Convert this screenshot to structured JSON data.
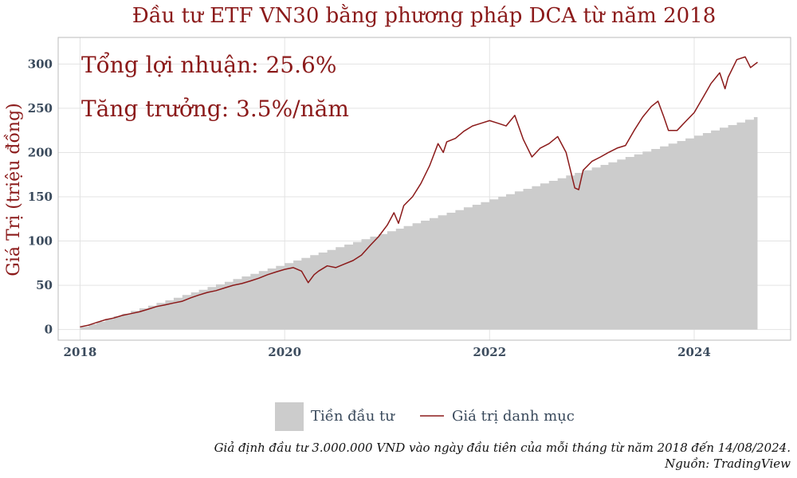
{
  "chart_data": {
    "type": "area",
    "title": "Đầu tư ETF VN30 bằng phương pháp DCA từ năm 2018",
    "ylabel": "Giá Trị (triệu đồng)",
    "xlabel": "",
    "xlim": [
      "2017-10-15",
      "2024-12-10"
    ],
    "ylim": [
      -12,
      330
    ],
    "x_ticks": [
      "2018",
      "2020",
      "2022",
      "2024"
    ],
    "y_ticks": [
      0,
      50,
      100,
      150,
      200,
      250,
      300
    ],
    "grid": true,
    "legend_position": "bottom",
    "annotations": [
      "Tổng lợi nhuận: 25.6%",
      "Tăng trưởng: 3.5%/năm"
    ],
    "caption_lines": [
      "Giả định đầu tư 3.000.000 VND vào ngày đầu tiên của mỗi tháng từ năm 2018 đến 14/08/2024.",
      "Nguồn: TradingView"
    ],
    "series": [
      {
        "name": "Tiền đầu tư",
        "kind": "step-area",
        "color": "#cccccc",
        "start": "2018-01-01",
        "end": "2024-08-14",
        "monthly_amount": 3
      },
      {
        "name": "Giá trị danh mục",
        "kind": "line",
        "color": "#8b1a1a",
        "points": [
          [
            "2018-01-01",
            3
          ],
          [
            "2018-02-01",
            5
          ],
          [
            "2018-03-01",
            8
          ],
          [
            "2018-04-01",
            11
          ],
          [
            "2018-05-01",
            13
          ],
          [
            "2018-06-01",
            16
          ],
          [
            "2018-07-01",
            18
          ],
          [
            "2018-08-01",
            20
          ],
          [
            "2018-09-01",
            23
          ],
          [
            "2018-10-01",
            26
          ],
          [
            "2018-11-01",
            28
          ],
          [
            "2018-12-01",
            30
          ],
          [
            "2019-01-01",
            32
          ],
          [
            "2019-02-01",
            36
          ],
          [
            "2019-03-01",
            39
          ],
          [
            "2019-04-01",
            42
          ],
          [
            "2019-05-01",
            44
          ],
          [
            "2019-06-01",
            47
          ],
          [
            "2019-07-01",
            50
          ],
          [
            "2019-08-01",
            52
          ],
          [
            "2019-09-01",
            55
          ],
          [
            "2019-10-01",
            58
          ],
          [
            "2019-11-01",
            62
          ],
          [
            "2019-12-01",
            65
          ],
          [
            "2020-01-01",
            68
          ],
          [
            "2020-02-01",
            70
          ],
          [
            "2020-03-01",
            66
          ],
          [
            "2020-03-25",
            53
          ],
          [
            "2020-04-15",
            62
          ],
          [
            "2020-05-01",
            66
          ],
          [
            "2020-06-01",
            72
          ],
          [
            "2020-07-01",
            70
          ],
          [
            "2020-08-01",
            74
          ],
          [
            "2020-09-01",
            78
          ],
          [
            "2020-10-01",
            84
          ],
          [
            "2020-11-01",
            95
          ],
          [
            "2020-12-01",
            105
          ],
          [
            "2021-01-01",
            118
          ],
          [
            "2021-01-25",
            132
          ],
          [
            "2021-02-10",
            120
          ],
          [
            "2021-03-01",
            140
          ],
          [
            "2021-04-01",
            150
          ],
          [
            "2021-05-01",
            165
          ],
          [
            "2021-06-01",
            185
          ],
          [
            "2021-07-01",
            210
          ],
          [
            "2021-07-20",
            200
          ],
          [
            "2021-08-01",
            212
          ],
          [
            "2021-09-01",
            216
          ],
          [
            "2021-10-01",
            224
          ],
          [
            "2021-11-01",
            230
          ],
          [
            "2021-12-01",
            233
          ],
          [
            "2022-01-01",
            236
          ],
          [
            "2022-02-01",
            233
          ],
          [
            "2022-03-01",
            230
          ],
          [
            "2022-04-01",
            242
          ],
          [
            "2022-05-01",
            215
          ],
          [
            "2022-06-01",
            195
          ],
          [
            "2022-07-01",
            205
          ],
          [
            "2022-08-01",
            210
          ],
          [
            "2022-09-01",
            218
          ],
          [
            "2022-10-01",
            200
          ],
          [
            "2022-11-01",
            160
          ],
          [
            "2022-11-15",
            158
          ],
          [
            "2022-12-01",
            180
          ],
          [
            "2023-01-01",
            190
          ],
          [
            "2023-02-01",
            195
          ],
          [
            "2023-03-01",
            200
          ],
          [
            "2023-04-01",
            205
          ],
          [
            "2023-05-01",
            208
          ],
          [
            "2023-06-01",
            225
          ],
          [
            "2023-07-01",
            240
          ],
          [
            "2023-08-01",
            252
          ],
          [
            "2023-08-25",
            258
          ],
          [
            "2023-09-15",
            240
          ],
          [
            "2023-10-01",
            225
          ],
          [
            "2023-11-01",
            225
          ],
          [
            "2023-12-01",
            235
          ],
          [
            "2024-01-01",
            245
          ],
          [
            "2024-02-01",
            262
          ],
          [
            "2024-03-01",
            278
          ],
          [
            "2024-04-01",
            290
          ],
          [
            "2024-04-20",
            272
          ],
          [
            "2024-05-01",
            285
          ],
          [
            "2024-06-01",
            305
          ],
          [
            "2024-07-01",
            308
          ],
          [
            "2024-07-20",
            296
          ],
          [
            "2024-08-14",
            302
          ]
        ]
      }
    ]
  }
}
